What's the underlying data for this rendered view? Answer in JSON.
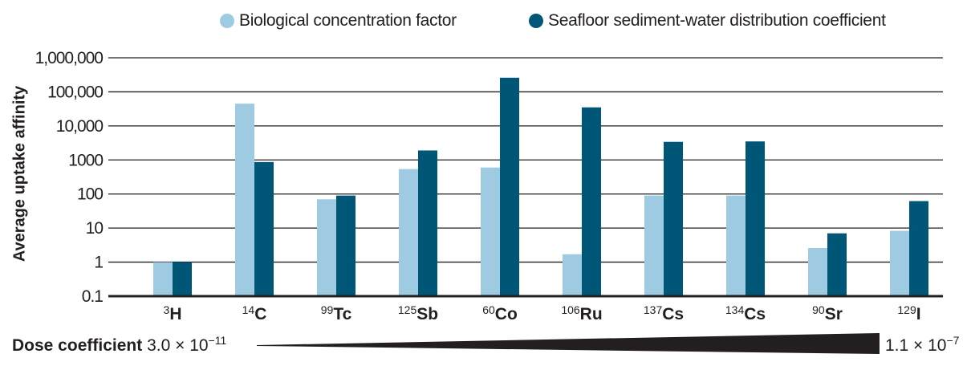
{
  "chart_data": {
    "type": "bar",
    "title": "",
    "ylabel": "Average uptake affinity",
    "xlabel": "",
    "yscale": "log",
    "ylim": [
      0.1,
      1000000
    ],
    "ytick_labels": [
      "0.1",
      "1",
      "10",
      "100",
      "1000",
      "10,000",
      "100,000",
      "1,000,000"
    ],
    "ytick_values": [
      0.1,
      1,
      10,
      100,
      1000,
      10000,
      100000,
      1000000
    ],
    "grid": true,
    "legend_position": "top",
    "categories": [
      {
        "mass": "3",
        "symbol": "H"
      },
      {
        "mass": "14",
        "symbol": "C"
      },
      {
        "mass": "99",
        "symbol": "Tc"
      },
      {
        "mass": "125",
        "symbol": "Sb"
      },
      {
        "mass": "60",
        "symbol": "Co"
      },
      {
        "mass": "106",
        "symbol": "Ru"
      },
      {
        "mass": "137",
        "symbol": "Cs"
      },
      {
        "mass": "134",
        "symbol": "Cs"
      },
      {
        "mass": "90",
        "symbol": "Sr"
      },
      {
        "mass": "129",
        "symbol": "I"
      }
    ],
    "series": [
      {
        "name": "Biological concentration factor",
        "color": "#9ecbe2",
        "values": [
          1,
          45000,
          70,
          540,
          600,
          1.7,
          90,
          90,
          2.6,
          8.3
        ]
      },
      {
        "name": "Seafloor sediment-water distribution coefficient",
        "color": "#005677",
        "values": [
          1,
          870,
          90,
          1900,
          260000,
          35000,
          3400,
          3500,
          7,
          62
        ]
      }
    ],
    "dose_coefficient": {
      "label": "Dose coefficient",
      "low_mantissa": "3.0 × 10",
      "low_exp": "−11",
      "high_mantissa": "1.1 × 10",
      "high_exp": "−7"
    }
  }
}
